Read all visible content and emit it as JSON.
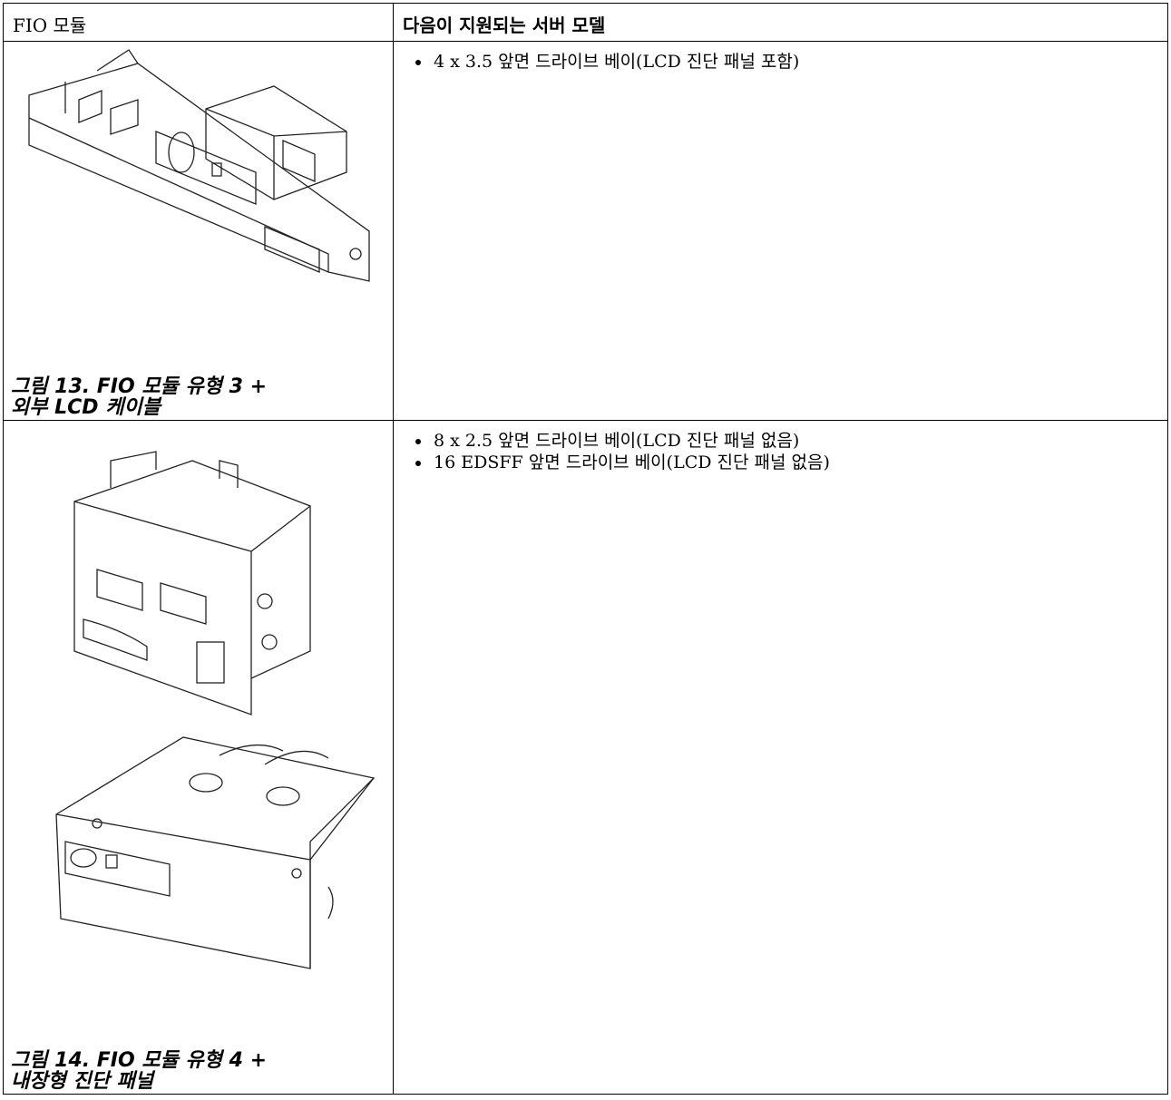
{
  "table": {
    "header": [
      "FIO 모듈",
      "다음이 지원되는 서버 모델"
    ],
    "rows": [
      {
        "caption": "그림 13. FIO 모듈 유형 3 + 외부 LCD 케이블",
        "models": [
          "4 x 3.5 앞면 드라이브 베이(LCD 진단 패널 포함)"
        ]
      },
      {
        "caption": "그림 14. FIO 모듈 유형 4 + 내장형 진단 패널",
        "models": [
          "8 x 2.5 앞면 드라이브 베이(LCD 진단 패널 없음)",
          "16 EDSFF 앞면 드라이브 베이(LCD 진단 패널 없음)"
        ]
      }
    ]
  }
}
